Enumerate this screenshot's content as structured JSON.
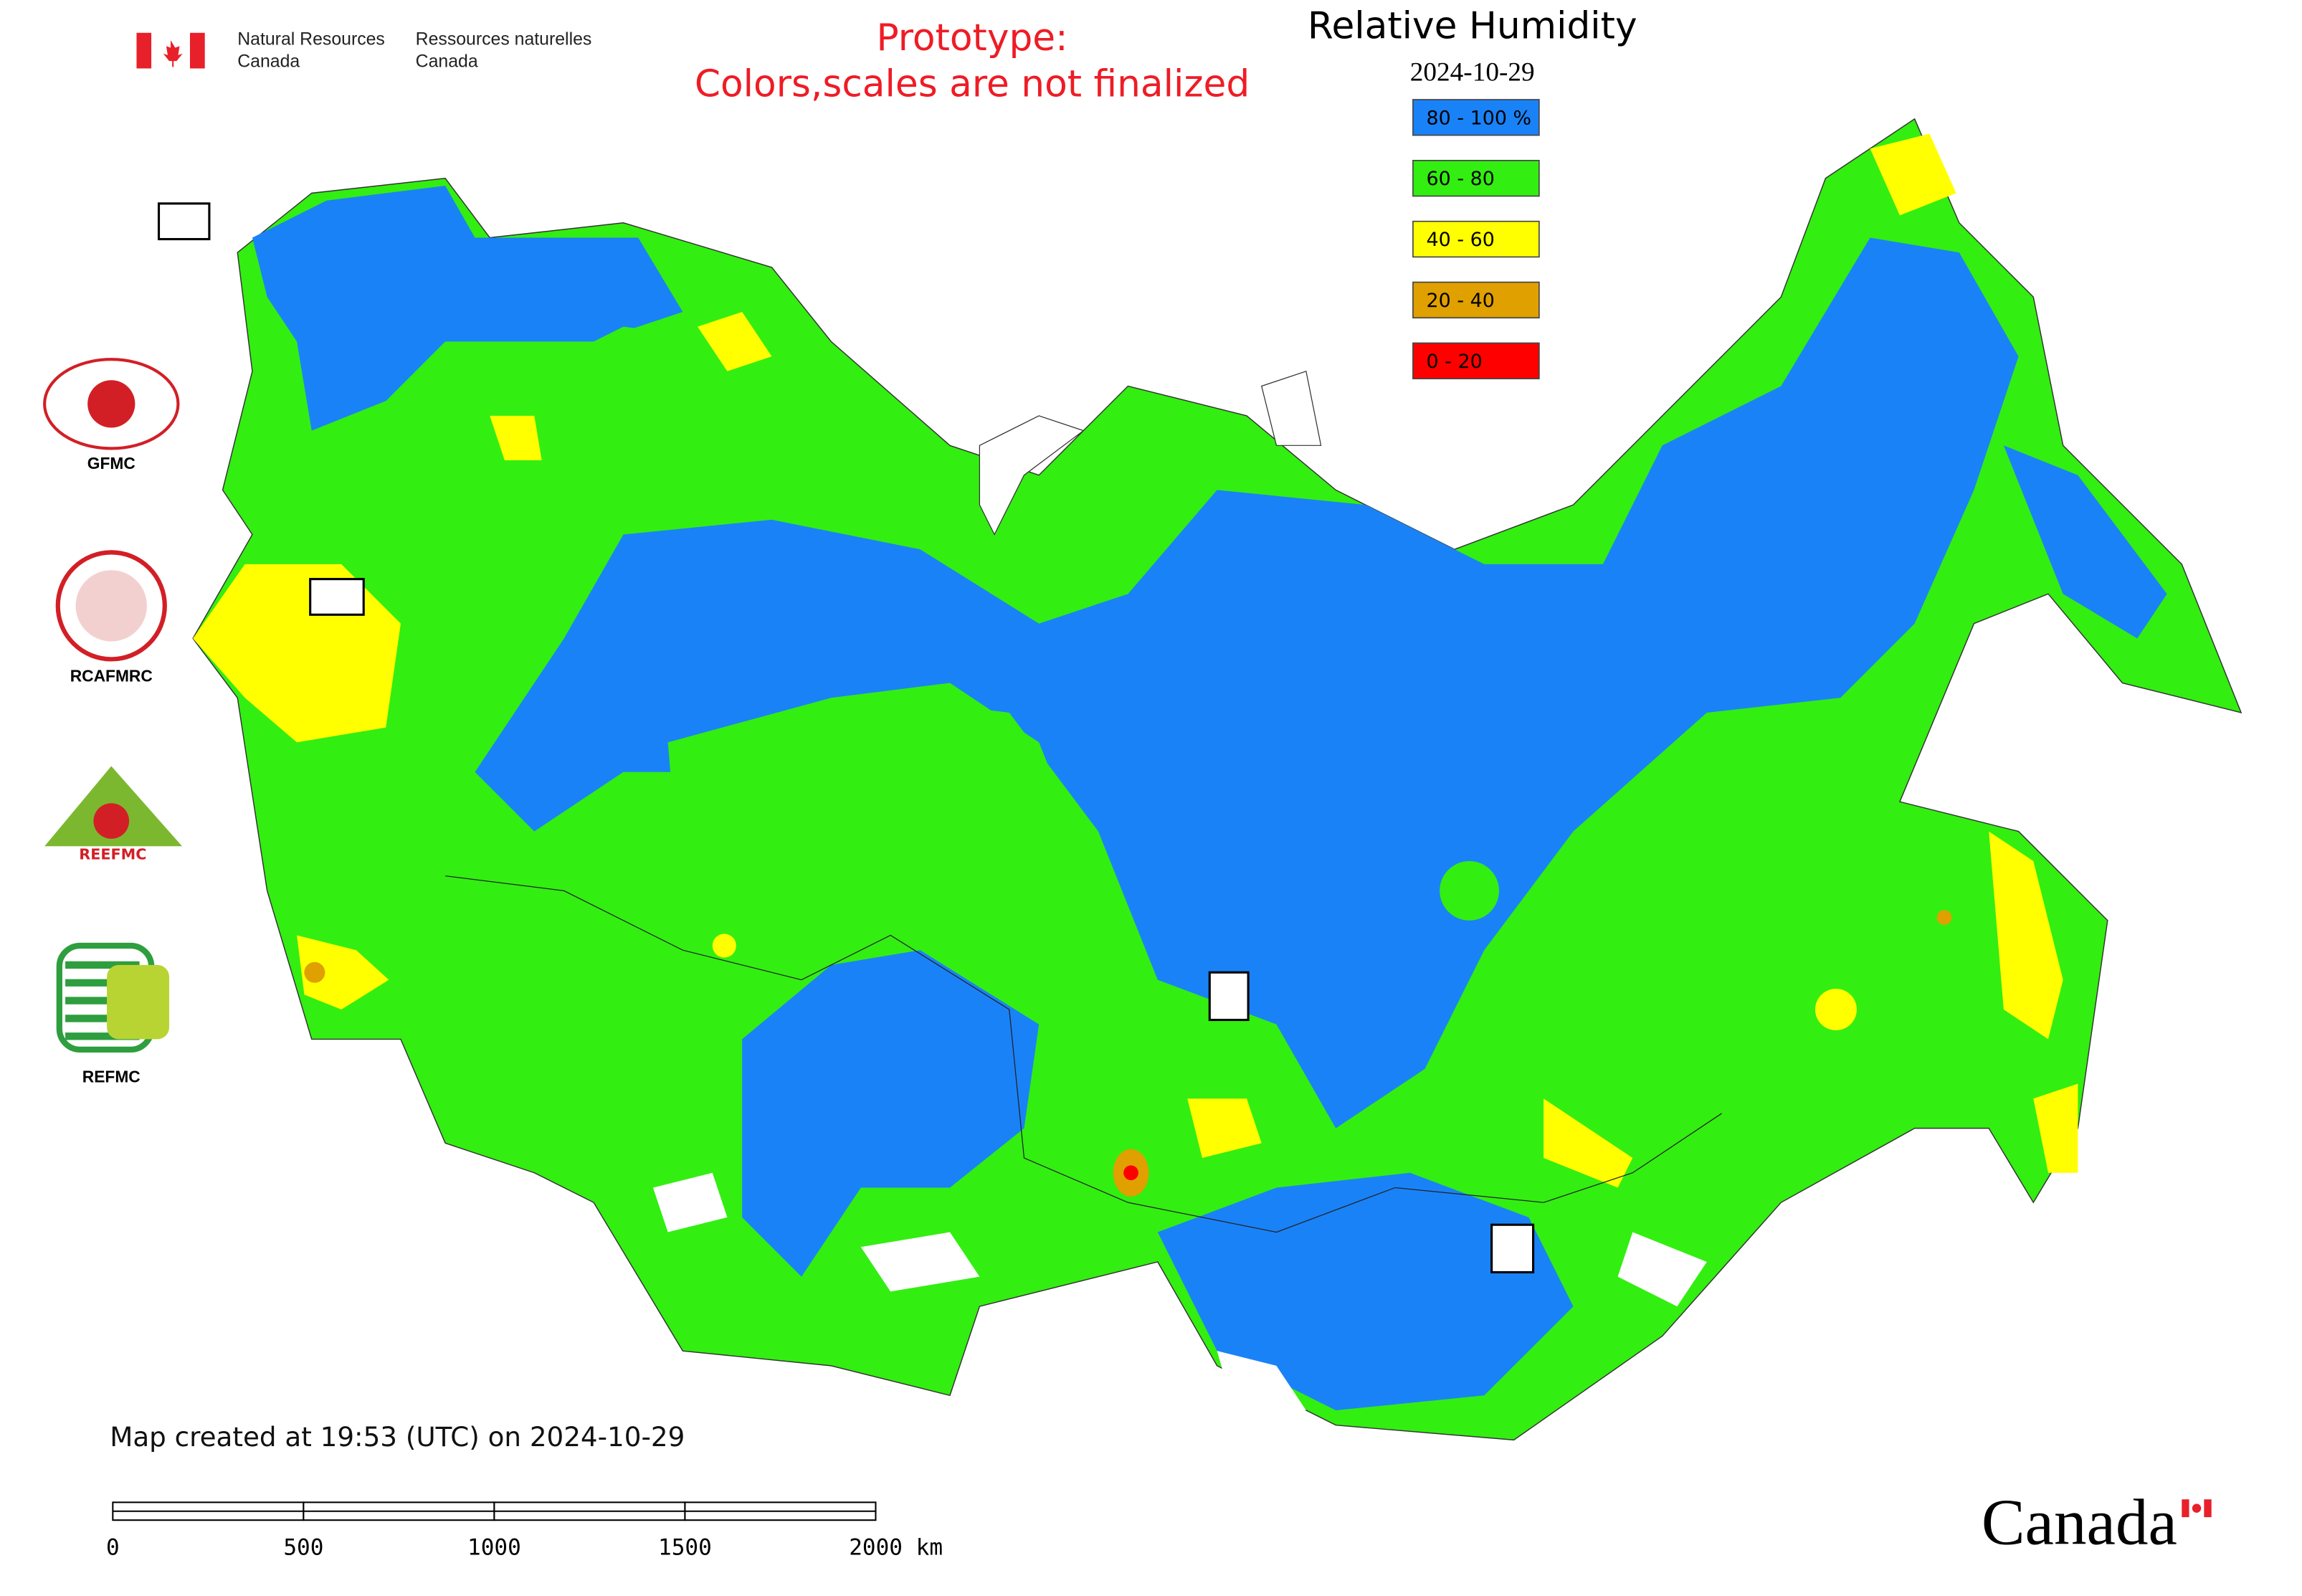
{
  "header": {
    "agency_en": [
      "Natural Resources",
      "Canada"
    ],
    "agency_fr": [
      "Ressources naturelles",
      "Canada"
    ],
    "notice": [
      "Prototype:",
      "Colors,scales are not finalized"
    ],
    "title": "Relative Humidity",
    "date": "2024-10-29"
  },
  "legend": [
    {
      "label": "80 - 100 %",
      "color": "#1a82f7"
    },
    {
      "label": "60 - 80",
      "color": "#33ee11"
    },
    {
      "label": "40 - 60",
      "color": "#ffff00"
    },
    {
      "label": "20 - 40",
      "color": "#e0a000"
    },
    {
      "label": "0 - 20",
      "color": "#ff0000"
    }
  ],
  "logos": [
    "GFMC",
    "RCAFMRC",
    "REFMC"
  ],
  "footer": {
    "created": "Map created at 19:53 (UTC) on 2024-10-29",
    "scale_labels": [
      "0",
      "500",
      "1000",
      "1500",
      "2000 km"
    ],
    "wordmark": "Canada"
  }
}
